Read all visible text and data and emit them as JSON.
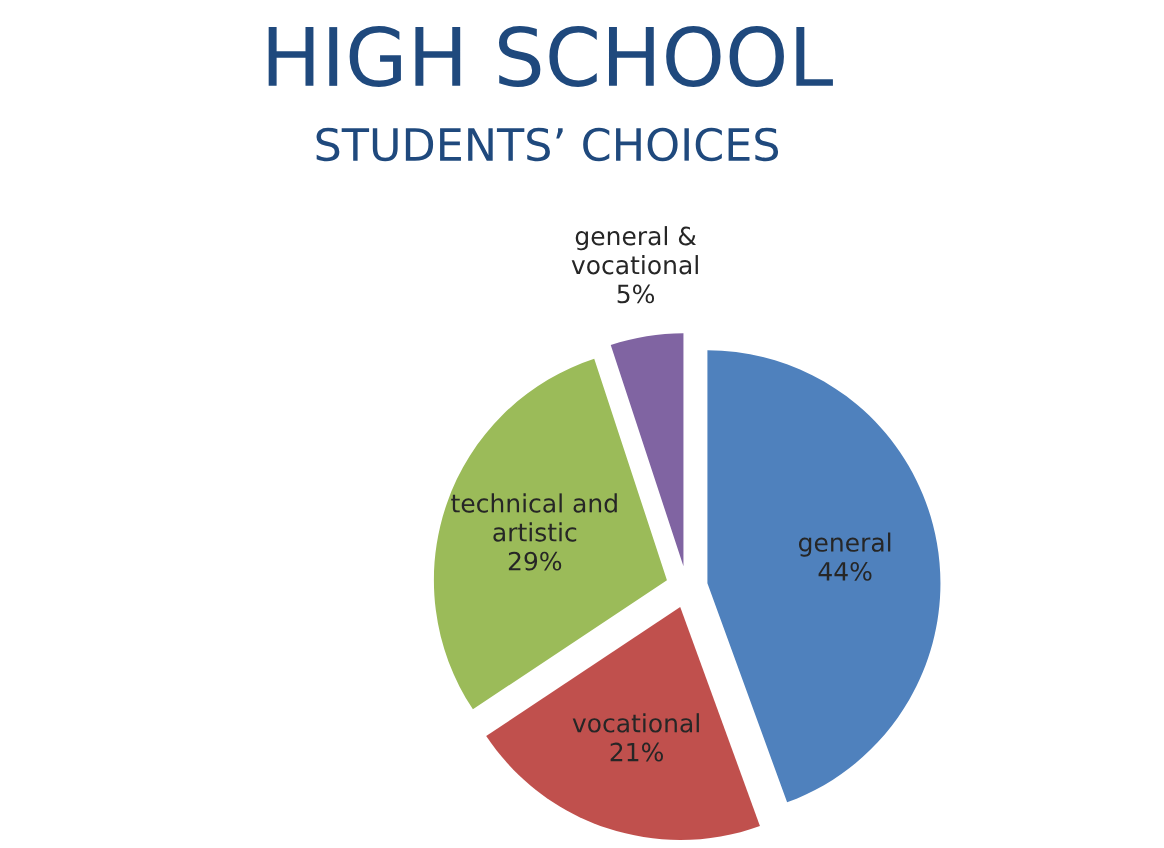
{
  "chart_data": {
    "type": "pie",
    "title": "HIGH SCHOOL",
    "subtitle": "STUDENTS’ CHOICES",
    "categories": [
      "general",
      "vocational",
      "technical and artistic",
      "general & vocational"
    ],
    "values": [
      44,
      21,
      29,
      5
    ],
    "value_labels": [
      "44%",
      "21%",
      "29%",
      "5%"
    ],
    "colors": [
      "#4f81bd",
      "#c0504d",
      "#9bbb59",
      "#8064a2"
    ]
  }
}
